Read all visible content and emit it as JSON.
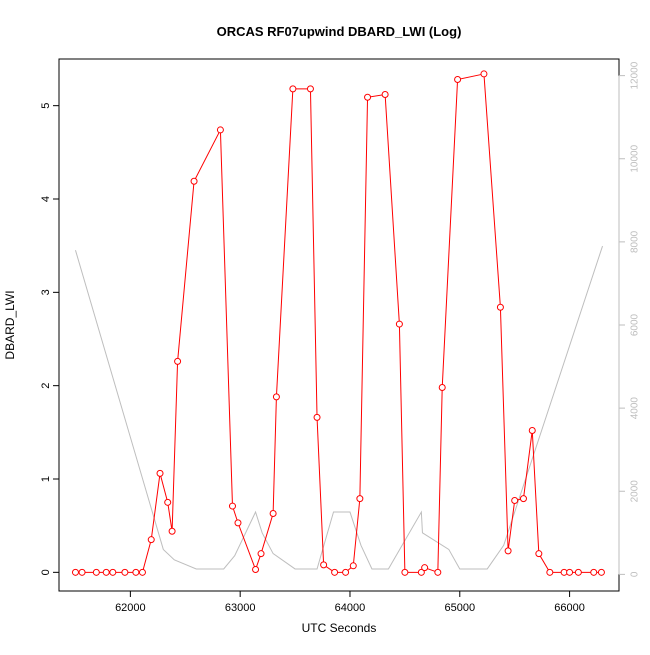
{
  "chart_data": {
    "type": "line",
    "title": "ORCAS RF07upwind DBARD_LWI (Log)",
    "xlabel": "UTC Seconds",
    "ylabel": "DBARD_LWI",
    "xlim": [
      61350,
      66450
    ],
    "ylim": [
      -0.2,
      5.5
    ],
    "y2lim": [
      -400,
      12400
    ],
    "x_ticks": [
      62000,
      63000,
      64000,
      65000,
      66000
    ],
    "y_ticks": [
      0,
      1,
      2,
      3,
      4,
      5
    ],
    "y2_ticks": [
      0,
      2000,
      4000,
      6000,
      8000,
      10000,
      12000
    ],
    "grid": false,
    "colors": {
      "primary": "#ff0000",
      "secondary": "#bebebe"
    },
    "series": [
      {
        "axis": "left",
        "style": "line-with-open-circles",
        "x": [
          61500,
          61560,
          61690,
          61780,
          61840,
          61950,
          62050,
          62110,
          62190,
          62270,
          62340,
          62380,
          62430,
          62580,
          62820,
          62930,
          62980,
          63140,
          63190,
          63300,
          63330,
          63480,
          63640,
          63700,
          63760,
          63860,
          63960,
          64030,
          64090,
          64160,
          64320,
          64450,
          64500,
          64650,
          64680,
          64800,
          64840,
          64980,
          65220,
          65370,
          65440,
          65500,
          65580,
          65660,
          65720,
          65820,
          65950,
          66000,
          66080,
          66220,
          66290
        ],
        "y": [
          0,
          0,
          0,
          0,
          0,
          0,
          0,
          0,
          0.35,
          1.06,
          0.75,
          0.44,
          2.26,
          4.19,
          4.74,
          0.71,
          0.53,
          0.03,
          0.2,
          0.63,
          1.88,
          5.18,
          5.18,
          1.66,
          0.08,
          0,
          0,
          0.07,
          0.79,
          5.09,
          5.12,
          2.66,
          0,
          0,
          0.05,
          0,
          1.98,
          5.28,
          5.34,
          2.84,
          0.23,
          0.77,
          0.79,
          1.52,
          0.2,
          0,
          0,
          0,
          0,
          0,
          0
        ]
      },
      {
        "axis": "right",
        "style": "line",
        "x": [
          61500,
          62300,
          62400,
          62600,
          62850,
          62950,
          63140,
          63200,
          63300,
          63500,
          63700,
          63850,
          64000,
          64100,
          64200,
          64350,
          64650,
          64660,
          64900,
          65000,
          65250,
          65400,
          66300
        ],
        "y": [
          7800,
          600,
          350,
          130,
          130,
          450,
          1500,
          1000,
          500,
          130,
          130,
          1500,
          1500,
          700,
          130,
          130,
          1500,
          1000,
          600,
          130,
          130,
          700,
          7900
        ]
      }
    ]
  }
}
